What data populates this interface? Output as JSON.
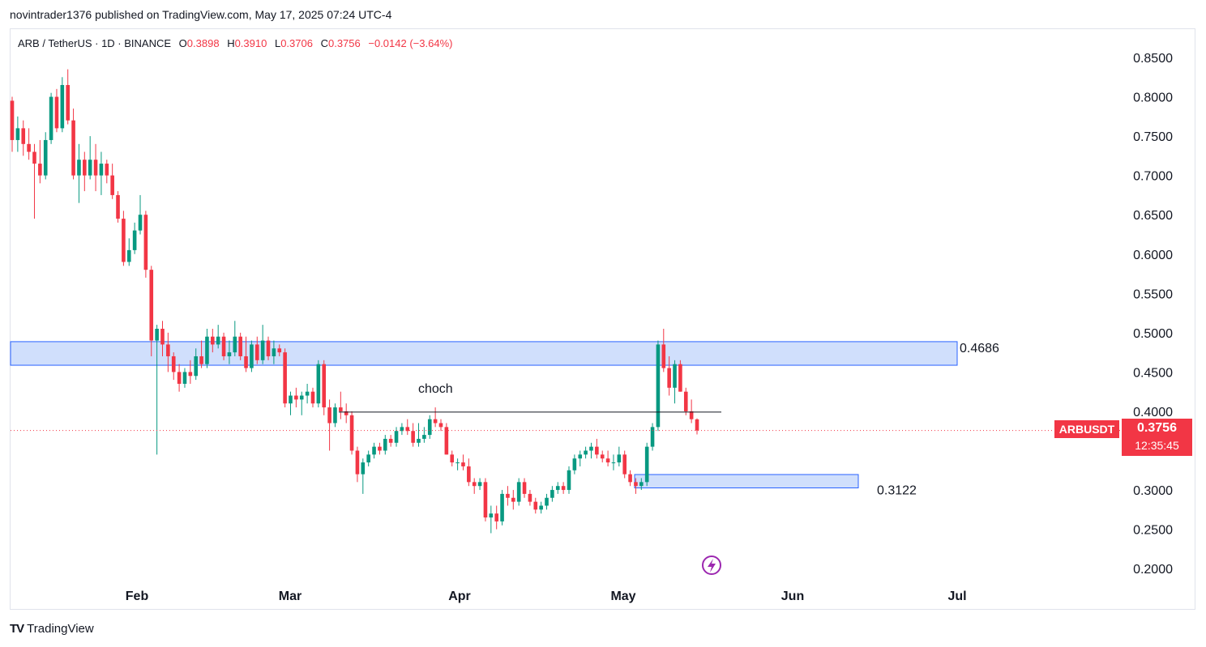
{
  "header": {
    "publisher_text": "novintrader1376 published on TradingView.com, May 17, 2025 07:24 UTC-4"
  },
  "legend": {
    "symbol": "ARB / TetherUS · 1D · BINANCE",
    "open_label": "O",
    "open": "0.3898",
    "high_label": "H",
    "high": "0.3910",
    "low_label": "L",
    "low": "0.3706",
    "close_label": "C",
    "close": "0.3756",
    "change": "−0.0142 (−3.64%)"
  },
  "price_badge": {
    "ticker": "ARBUSDT",
    "price": "0.3756",
    "countdown": "12:35:45"
  },
  "annotations": {
    "upper_zone_label": "0.4686",
    "lower_zone_label": "0.3122",
    "choch_label": "choch"
  },
  "footer": {
    "brand": "TradingView"
  },
  "colors": {
    "up": "#089981",
    "down": "#f23645",
    "zone_fill": "#c8d9fb",
    "zone_border": "#2962ff"
  },
  "chart_data": {
    "type": "candlestick",
    "title": "ARB / TetherUS · 1D · BINANCE",
    "y_axis_ticks": [
      "0.8500",
      "0.8000",
      "0.7500",
      "0.7000",
      "0.6500",
      "0.6000",
      "0.5500",
      "0.5000",
      "0.4500",
      "0.4000",
      "0.3500",
      "0.3000",
      "0.2500",
      "0.2000"
    ],
    "ylim": [
      0.18,
      0.87
    ],
    "x_axis_ticks": [
      "Feb",
      "Mar",
      "Apr",
      "May",
      "Jun",
      "Jul"
    ],
    "zones": [
      {
        "name": "resistance",
        "from": 0.4586,
        "to": 0.4886,
        "label": "0.4686"
      },
      {
        "name": "support",
        "from": 0.3026,
        "to": 0.3196,
        "label": "0.3122"
      }
    ],
    "lines": [
      {
        "name": "choch",
        "value": 0.399
      }
    ],
    "last_close": 0.3756,
    "candles": [
      [
        0.795,
        0.8,
        0.73,
        0.745
      ],
      [
        0.745,
        0.775,
        0.73,
        0.76
      ],
      [
        0.76,
        0.77,
        0.725,
        0.74
      ],
      [
        0.74,
        0.76,
        0.72,
        0.73
      ],
      [
        0.73,
        0.74,
        0.645,
        0.715
      ],
      [
        0.715,
        0.745,
        0.69,
        0.7
      ],
      [
        0.7,
        0.755,
        0.695,
        0.745
      ],
      [
        0.745,
        0.805,
        0.74,
        0.8
      ],
      [
        0.8,
        0.81,
        0.755,
        0.76
      ],
      [
        0.76,
        0.825,
        0.755,
        0.815
      ],
      [
        0.815,
        0.835,
        0.765,
        0.77
      ],
      [
        0.77,
        0.785,
        0.695,
        0.7
      ],
      [
        0.7,
        0.74,
        0.665,
        0.72
      ],
      [
        0.72,
        0.73,
        0.68,
        0.7
      ],
      [
        0.7,
        0.75,
        0.695,
        0.72
      ],
      [
        0.72,
        0.74,
        0.68,
        0.7
      ],
      [
        0.7,
        0.73,
        0.675,
        0.715
      ],
      [
        0.715,
        0.72,
        0.69,
        0.7
      ],
      [
        0.7,
        0.715,
        0.67,
        0.675
      ],
      [
        0.675,
        0.68,
        0.64,
        0.645
      ],
      [
        0.645,
        0.655,
        0.585,
        0.59
      ],
      [
        0.59,
        0.62,
        0.585,
        0.605
      ],
      [
        0.605,
        0.64,
        0.6,
        0.63
      ],
      [
        0.63,
        0.675,
        0.625,
        0.65
      ],
      [
        0.65,
        0.655,
        0.57,
        0.58
      ],
      [
        0.58,
        0.585,
        0.47,
        0.49
      ],
      [
        0.49,
        0.51,
        0.345,
        0.505
      ],
      [
        0.505,
        0.515,
        0.47,
        0.485
      ],
      [
        0.485,
        0.5,
        0.45,
        0.47
      ],
      [
        0.47,
        0.475,
        0.44,
        0.45
      ],
      [
        0.45,
        0.46,
        0.425,
        0.435
      ],
      [
        0.435,
        0.455,
        0.43,
        0.45
      ],
      [
        0.45,
        0.465,
        0.435,
        0.445
      ],
      [
        0.445,
        0.48,
        0.44,
        0.47
      ],
      [
        0.47,
        0.49,
        0.455,
        0.46
      ],
      [
        0.46,
        0.505,
        0.455,
        0.495
      ],
      [
        0.495,
        0.505,
        0.475,
        0.485
      ],
      [
        0.485,
        0.51,
        0.48,
        0.495
      ],
      [
        0.495,
        0.5,
        0.465,
        0.47
      ],
      [
        0.47,
        0.49,
        0.46,
        0.475
      ],
      [
        0.475,
        0.515,
        0.47,
        0.495
      ],
      [
        0.495,
        0.5,
        0.465,
        0.47
      ],
      [
        0.47,
        0.495,
        0.45,
        0.455
      ],
      [
        0.455,
        0.49,
        0.45,
        0.485
      ],
      [
        0.485,
        0.495,
        0.46,
        0.465
      ],
      [
        0.465,
        0.51,
        0.46,
        0.49
      ],
      [
        0.49,
        0.495,
        0.465,
        0.47
      ],
      [
        0.47,
        0.49,
        0.46,
        0.48
      ],
      [
        0.48,
        0.485,
        0.47,
        0.475
      ],
      [
        0.475,
        0.48,
        0.405,
        0.41
      ],
      [
        0.41,
        0.425,
        0.395,
        0.42
      ],
      [
        0.42,
        0.43,
        0.405,
        0.415
      ],
      [
        0.415,
        0.425,
        0.395,
        0.42
      ],
      [
        0.42,
        0.435,
        0.41,
        0.425
      ],
      [
        0.425,
        0.43,
        0.405,
        0.41
      ],
      [
        0.41,
        0.465,
        0.405,
        0.46
      ],
      [
        0.46,
        0.465,
        0.395,
        0.405
      ],
      [
        0.405,
        0.415,
        0.35,
        0.385
      ],
      [
        0.385,
        0.41,
        0.38,
        0.405
      ],
      [
        0.405,
        0.425,
        0.39,
        0.4
      ],
      [
        0.4,
        0.41,
        0.385,
        0.395
      ],
      [
        0.395,
        0.4,
        0.345,
        0.35
      ],
      [
        0.35,
        0.355,
        0.31,
        0.32
      ],
      [
        0.32,
        0.34,
        0.295,
        0.335
      ],
      [
        0.335,
        0.35,
        0.33,
        0.345
      ],
      [
        0.345,
        0.36,
        0.34,
        0.355
      ],
      [
        0.355,
        0.36,
        0.345,
        0.35
      ],
      [
        0.35,
        0.37,
        0.345,
        0.365
      ],
      [
        0.365,
        0.37,
        0.355,
        0.36
      ],
      [
        0.36,
        0.38,
        0.355,
        0.375
      ],
      [
        0.375,
        0.385,
        0.37,
        0.38
      ],
      [
        0.38,
        0.39,
        0.37,
        0.375
      ],
      [
        0.375,
        0.385,
        0.355,
        0.36
      ],
      [
        0.36,
        0.385,
        0.355,
        0.365
      ],
      [
        0.365,
        0.38,
        0.36,
        0.37
      ],
      [
        0.37,
        0.395,
        0.365,
        0.39
      ],
      [
        0.39,
        0.405,
        0.38,
        0.385
      ],
      [
        0.385,
        0.39,
        0.375,
        0.38
      ],
      [
        0.38,
        0.385,
        0.345,
        0.345
      ],
      [
        0.345,
        0.35,
        0.33,
        0.335
      ],
      [
        0.335,
        0.34,
        0.325,
        0.335
      ],
      [
        0.335,
        0.345,
        0.325,
        0.33
      ],
      [
        0.33,
        0.34,
        0.305,
        0.31
      ],
      [
        0.31,
        0.315,
        0.295,
        0.305
      ],
      [
        0.305,
        0.315,
        0.3,
        0.31
      ],
      [
        0.31,
        0.315,
        0.26,
        0.265
      ],
      [
        0.265,
        0.28,
        0.245,
        0.27
      ],
      [
        0.27,
        0.28,
        0.25,
        0.26
      ],
      [
        0.26,
        0.3,
        0.255,
        0.295
      ],
      [
        0.295,
        0.305,
        0.28,
        0.29
      ],
      [
        0.29,
        0.3,
        0.275,
        0.285
      ],
      [
        0.285,
        0.315,
        0.28,
        0.31
      ],
      [
        0.31,
        0.315,
        0.29,
        0.295
      ],
      [
        0.295,
        0.3,
        0.28,
        0.285
      ],
      [
        0.285,
        0.29,
        0.27,
        0.275
      ],
      [
        0.275,
        0.285,
        0.27,
        0.28
      ],
      [
        0.28,
        0.295,
        0.275,
        0.29
      ],
      [
        0.29,
        0.305,
        0.285,
        0.3
      ],
      [
        0.3,
        0.31,
        0.295,
        0.305
      ],
      [
        0.305,
        0.31,
        0.295,
        0.3
      ],
      [
        0.3,
        0.33,
        0.295,
        0.325
      ],
      [
        0.325,
        0.345,
        0.32,
        0.34
      ],
      [
        0.34,
        0.35,
        0.33,
        0.345
      ],
      [
        0.345,
        0.355,
        0.34,
        0.35
      ],
      [
        0.35,
        0.36,
        0.34,
        0.355
      ],
      [
        0.355,
        0.365,
        0.34,
        0.345
      ],
      [
        0.345,
        0.35,
        0.335,
        0.34
      ],
      [
        0.34,
        0.35,
        0.33,
        0.335
      ],
      [
        0.335,
        0.345,
        0.325,
        0.335
      ],
      [
        0.335,
        0.355,
        0.33,
        0.345
      ],
      [
        0.345,
        0.35,
        0.315,
        0.32
      ],
      [
        0.32,
        0.325,
        0.305,
        0.31
      ],
      [
        0.31,
        0.315,
        0.295,
        0.305
      ],
      [
        0.305,
        0.315,
        0.3,
        0.31
      ],
      [
        0.31,
        0.36,
        0.305,
        0.355
      ],
      [
        0.355,
        0.385,
        0.35,
        0.38
      ],
      [
        0.38,
        0.49,
        0.375,
        0.485
      ],
      [
        0.485,
        0.505,
        0.45,
        0.455
      ],
      [
        0.455,
        0.47,
        0.42,
        0.43
      ],
      [
        0.43,
        0.465,
        0.41,
        0.46
      ],
      [
        0.46,
        0.465,
        0.425,
        0.425
      ],
      [
        0.425,
        0.43,
        0.395,
        0.4
      ],
      [
        0.4,
        0.415,
        0.385,
        0.39
      ],
      [
        0.3898,
        0.391,
        0.3706,
        0.3756
      ]
    ]
  }
}
